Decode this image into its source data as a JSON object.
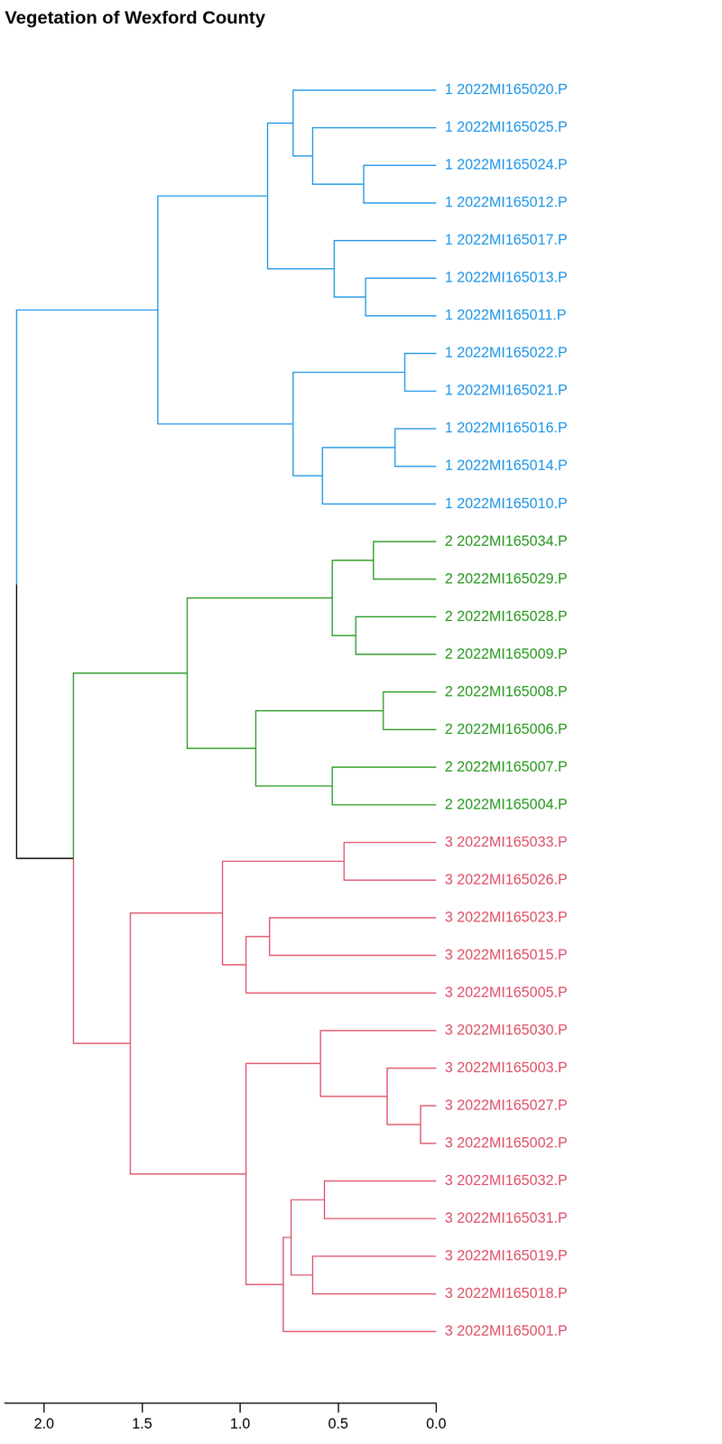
{
  "chart_data": {
    "type": "dendrogram",
    "title": "Vegetation of Wexford County",
    "xlim": [
      2.2,
      0
    ],
    "xticks": [
      {
        "value": 2,
        "label": "2.0"
      },
      1.5,
      {
        "value": 1,
        "label": "1.0"
      },
      0.5,
      {
        "value": 0,
        "label": "0.0"
      }
    ],
    "tree": {
      "height": 2.14,
      "children": [
        {
          "height": 1.42,
          "color": "#2297E6",
          "children": [
            {
              "height": 0.86,
              "color": "#2297E6",
              "children": [
                {
                  "height": 0.73,
                  "color": "#2297E6",
                  "children": [
                    {
                      "label": "1 2022MI165020.P",
                      "color": "#2297E6"
                    },
                    {
                      "height": 0.63,
                      "color": "#2297E6",
                      "children": [
                        {
                          "label": "1 2022MI165025.P",
                          "color": "#2297E6"
                        },
                        {
                          "height": 0.37,
                          "color": "#2297E6",
                          "children": [
                            {
                              "label": "1 2022MI165024.P",
                              "color": "#2297E6"
                            },
                            {
                              "label": "1 2022MI165012.P",
                              "color": "#2297E6"
                            }
                          ]
                        }
                      ]
                    }
                  ]
                },
                {
                  "height": 0.52,
                  "color": "#2297E6",
                  "children": [
                    {
                      "label": "1 2022MI165017.P",
                      "color": "#2297E6"
                    },
                    {
                      "height": 0.36,
                      "color": "#2297E6",
                      "children": [
                        {
                          "label": "1 2022MI165013.P",
                          "color": "#2297E6"
                        },
                        {
                          "label": "1 2022MI165011.P",
                          "color": "#2297E6"
                        }
                      ]
                    }
                  ]
                }
              ]
            },
            {
              "height": 0.73,
              "color": "#2297E6",
              "children": [
                {
                  "height": 0.16,
                  "color": "#2297E6",
                  "children": [
                    {
                      "label": "1 2022MI165022.P",
                      "color": "#2297E6"
                    },
                    {
                      "label": "1 2022MI165021.P",
                      "color": "#2297E6"
                    }
                  ]
                },
                {
                  "height": 0.58,
                  "color": "#2297E6",
                  "children": [
                    {
                      "height": 0.21,
                      "color": "#2297E6",
                      "children": [
                        {
                          "label": "1 2022MI165016.P",
                          "color": "#2297E6"
                        },
                        {
                          "label": "1 2022MI165014.P",
                          "color": "#2297E6"
                        }
                      ]
                    },
                    {
                      "label": "1 2022MI165010.P",
                      "color": "#2297E6"
                    }
                  ]
                }
              ]
            }
          ]
        },
        {
          "height": 1.85,
          "color": "#000000",
          "children": [
            {
              "height": 1.27,
              "color": "#2B9A22",
              "children": [
                {
                  "height": 0.53,
                  "color": "#2B9A22",
                  "children": [
                    {
                      "height": 0.32,
                      "color": "#2B9A22",
                      "children": [
                        {
                          "label": "2 2022MI165034.P",
                          "color": "#2B9A22"
                        },
                        {
                          "label": "2 2022MI165029.P",
                          "color": "#2B9A22"
                        }
                      ]
                    },
                    {
                      "height": 0.41,
                      "color": "#2B9A22",
                      "children": [
                        {
                          "label": "2 2022MI165028.P",
                          "color": "#2B9A22"
                        },
                        {
                          "label": "2 2022MI165009.P",
                          "color": "#2B9A22"
                        }
                      ]
                    }
                  ]
                },
                {
                  "height": 0.92,
                  "color": "#2B9A22",
                  "children": [
                    {
                      "height": 0.27,
                      "color": "#2B9A22",
                      "children": [
                        {
                          "label": "2 2022MI165008.P",
                          "color": "#2B9A22"
                        },
                        {
                          "label": "2 2022MI165006.P",
                          "color": "#2B9A22"
                        }
                      ]
                    },
                    {
                      "height": 0.53,
                      "color": "#2B9A22",
                      "children": [
                        {
                          "label": "2 2022MI165007.P",
                          "color": "#2B9A22"
                        },
                        {
                          "label": "2 2022MI165004.P",
                          "color": "#2B9A22"
                        }
                      ]
                    }
                  ]
                }
              ]
            },
            {
              "height": 1.56,
              "color": "#DF536B",
              "children": [
                {
                  "height": 1.09,
                  "color": "#DF536B",
                  "children": [
                    {
                      "height": 0.47,
                      "color": "#DF536B",
                      "children": [
                        {
                          "label": "3 2022MI165033.P",
                          "color": "#DF536B"
                        },
                        {
                          "label": "3 2022MI165026.P",
                          "color": "#DF536B"
                        }
                      ]
                    },
                    {
                      "height": 0.97,
                      "color": "#DF536B",
                      "children": [
                        {
                          "height": 0.85,
                          "color": "#DF536B",
                          "children": [
                            {
                              "label": "3 2022MI165023.P",
                              "color": "#DF536B"
                            },
                            {
                              "label": "3 2022MI165015.P",
                              "color": "#DF536B"
                            }
                          ]
                        },
                        {
                          "label": "3 2022MI165005.P",
                          "color": "#DF536B"
                        }
                      ]
                    }
                  ]
                },
                {
                  "height": 0.97,
                  "color": "#DF536B",
                  "children": [
                    {
                      "height": 0.59,
                      "color": "#DF536B",
                      "children": [
                        {
                          "label": "3 2022MI165030.P",
                          "color": "#DF536B"
                        },
                        {
                          "height": 0.25,
                          "color": "#DF536B",
                          "children": [
                            {
                              "label": "3 2022MI165003.P",
                              "color": "#DF536B"
                            },
                            {
                              "height": 0.08,
                              "color": "#DF536B",
                              "children": [
                                {
                                  "label": "3 2022MI165027.P",
                                  "color": "#DF536B"
                                },
                                {
                                  "label": "3 2022MI165002.P",
                                  "color": "#DF536B"
                                }
                              ]
                            }
                          ]
                        }
                      ]
                    },
                    {
                      "height": 0.78,
                      "color": "#DF536B",
                      "children": [
                        {
                          "height": 0.74,
                          "color": "#DF536B",
                          "children": [
                            {
                              "height": 0.57,
                              "color": "#DF536B",
                              "children": [
                                {
                                  "label": "3 2022MI165032.P",
                                  "color": "#DF536B"
                                },
                                {
                                  "label": "3 2022MI165031.P",
                                  "color": "#DF536B"
                                }
                              ]
                            },
                            {
                              "height": 0.63,
                              "color": "#DF536B",
                              "children": [
                                {
                                  "label": "3 2022MI165019.P",
                                  "color": "#DF536B"
                                },
                                {
                                  "label": "3 2022MI165018.P",
                                  "color": "#DF536B"
                                }
                              ]
                            }
                          ]
                        },
                        {
                          "label": "3 2022MI165001.P",
                          "color": "#DF536B"
                        }
                      ]
                    }
                  ]
                }
              ]
            }
          ]
        }
      ]
    }
  }
}
